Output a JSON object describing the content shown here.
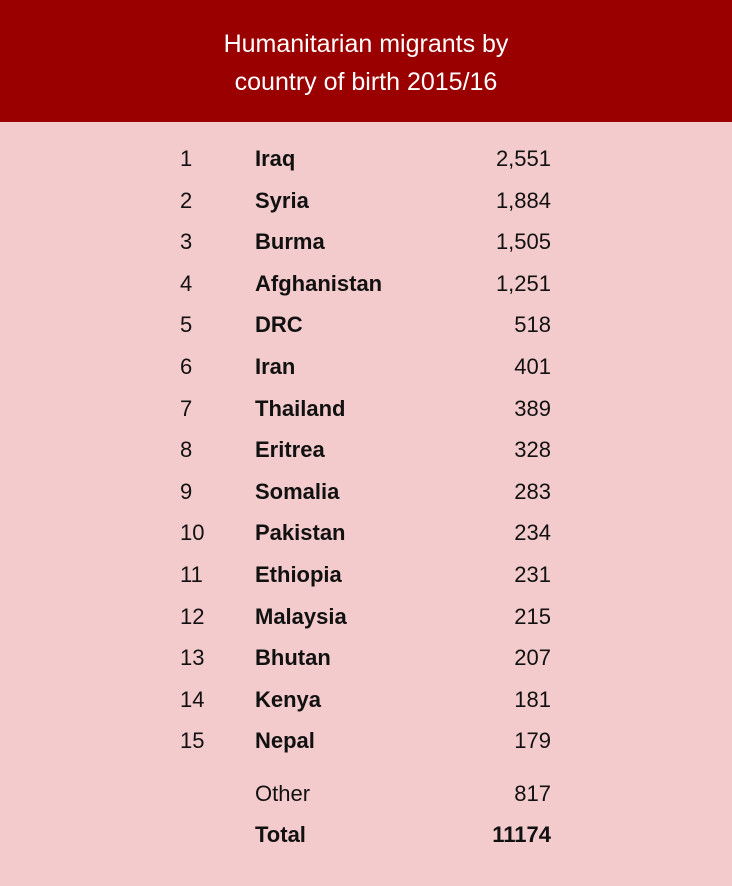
{
  "chart_data": {
    "type": "table",
    "title": "Humanitarian migrants by country of birth 2015/16",
    "rows": [
      {
        "rank": "1",
        "country": "Iraq",
        "value": "2,551"
      },
      {
        "rank": "2",
        "country": "Syria",
        "value": "1,884"
      },
      {
        "rank": "3",
        "country": "Burma",
        "value": "1,505"
      },
      {
        "rank": "4",
        "country": "Afghanistan",
        "value": "1,251"
      },
      {
        "rank": "5",
        "country": "DRC",
        "value": "518"
      },
      {
        "rank": "6",
        "country": "Iran",
        "value": "401"
      },
      {
        "rank": "7",
        "country": "Thailand",
        "value": "389"
      },
      {
        "rank": "8",
        "country": "Eritrea",
        "value": "328"
      },
      {
        "rank": "9",
        "country": "Somalia",
        "value": "283"
      },
      {
        "rank": "10",
        "country": "Pakistan",
        "value": "234"
      },
      {
        "rank": "11",
        "country": "Ethiopia",
        "value": "231"
      },
      {
        "rank": "12",
        "country": "Malaysia",
        "value": "215"
      },
      {
        "rank": "13",
        "country": "Bhutan",
        "value": "207"
      },
      {
        "rank": "14",
        "country": "Kenya",
        "value": "181"
      },
      {
        "rank": "15",
        "country": "Nepal",
        "value": "179"
      }
    ],
    "other": {
      "label": "Other",
      "value": "817"
    },
    "total": {
      "label": "Total",
      "value": "11174"
    }
  },
  "colors": {
    "header": "#9b0000",
    "background": "#f4cbcc",
    "title_text": "#ffffff"
  }
}
